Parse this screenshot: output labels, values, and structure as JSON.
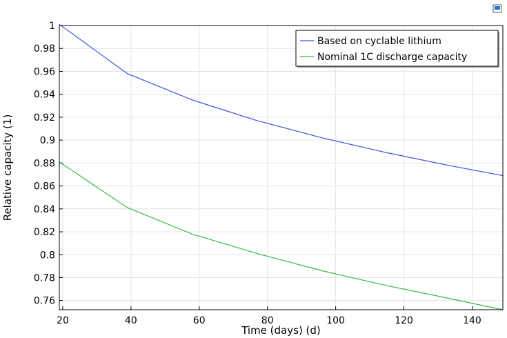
{
  "chart_data": {
    "type": "line",
    "title": "",
    "xlabel": "Time (days) (d)",
    "ylabel": "Relative capacity (1)",
    "xlim": [
      19,
      149
    ],
    "ylim": [
      0.752,
      1.0
    ],
    "x_ticks": [
      20,
      40,
      60,
      80,
      100,
      120,
      140
    ],
    "x_tick_labels": [
      "20",
      "40",
      "60",
      "80",
      "100",
      "120",
      "140"
    ],
    "y_ticks": [
      0.76,
      0.78,
      0.8,
      0.82,
      0.84,
      0.86,
      0.88,
      0.9,
      0.92,
      0.94,
      0.96,
      0.98,
      1.0
    ],
    "y_tick_labels": [
      "0.76",
      "0.78",
      "0.8",
      "0.82",
      "0.84",
      "0.86",
      "0.88",
      "0.9",
      "0.92",
      "0.94",
      "0.96",
      "0.98",
      "1"
    ],
    "grid": true,
    "legend_position": "top-right",
    "series": [
      {
        "name": "Based on cyclable lithium",
        "color": "#3355dd",
        "x": [
          19,
          39,
          58,
          77,
          96,
          115,
          133,
          149
        ],
        "y": [
          1.001,
          0.958,
          0.935,
          0.917,
          0.902,
          0.889,
          0.878,
          0.869
        ]
      },
      {
        "name": "Nominal 1C discharge capacity",
        "color": "#33bb44",
        "x": [
          19,
          39,
          58,
          77,
          96,
          115,
          133,
          149
        ],
        "y": [
          0.881,
          0.841,
          0.818,
          0.801,
          0.786,
          0.773,
          0.762,
          0.752
        ]
      }
    ]
  },
  "toolbar": {
    "icon": "monitor-icon"
  }
}
